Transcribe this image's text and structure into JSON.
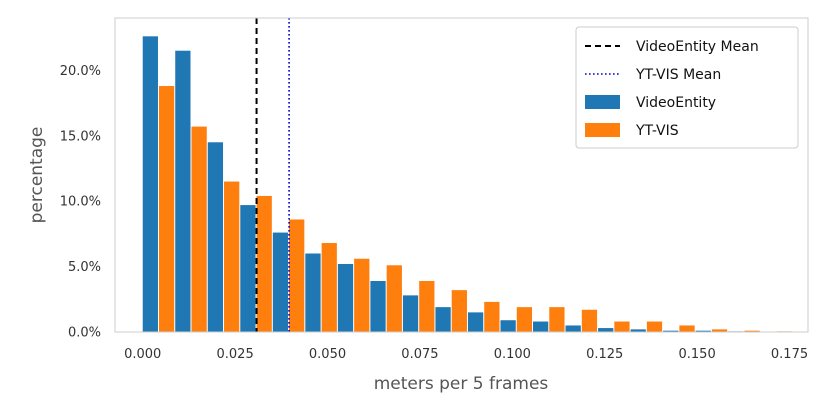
{
  "chart_data": {
    "type": "bar",
    "xlabel": "meters per 5 frames",
    "ylabel": "percentage",
    "xlim": [
      -0.0075,
      0.18
    ],
    "ylim": [
      0,
      24
    ],
    "x_ticks": [
      0.0,
      0.025,
      0.05,
      0.075,
      0.1,
      0.125,
      0.15,
      0.175
    ],
    "x_tick_labels": [
      "0.000",
      "0.025",
      "0.050",
      "0.075",
      "0.100",
      "0.125",
      "0.150",
      "0.175"
    ],
    "y_ticks": [
      0,
      5,
      10,
      15,
      20
    ],
    "y_tick_labels": [
      "0.0%",
      "5.0%",
      "10.0%",
      "15.0%",
      "20.0%"
    ],
    "grid": false,
    "legend_placement": "top-right",
    "bin_width": 0.0088,
    "x": [
      0.0044,
      0.0132,
      0.022,
      0.0308,
      0.0396,
      0.0484,
      0.0572,
      0.066,
      0.0748,
      0.0836,
      0.0924,
      0.1012,
      0.11,
      0.1188,
      0.1276,
      0.1364,
      0.1452,
      0.154,
      0.1628,
      0.1716
    ],
    "series": [
      {
        "name": "VideoEntity",
        "color": "#1f77b4",
        "values": [
          22.6,
          21.5,
          14.5,
          9.7,
          7.6,
          6.0,
          5.2,
          3.9,
          2.8,
          1.9,
          1.5,
          0.9,
          0.8,
          0.5,
          0.3,
          0.2,
          0.1,
          0.1,
          0.05,
          0.03
        ]
      },
      {
        "name": "YT-VIS",
        "color": "#ff7f0e",
        "values": [
          18.8,
          15.7,
          11.5,
          10.4,
          8.6,
          6.8,
          5.6,
          5.1,
          3.9,
          3.2,
          2.3,
          1.9,
          1.9,
          1.7,
          0.8,
          0.8,
          0.5,
          0.2,
          0.1,
          0.05
        ]
      }
    ],
    "reference_lines": [
      {
        "name": "VideoEntity Mean",
        "x": 0.0308,
        "color": "#000000",
        "style": "dashed"
      },
      {
        "name": "YT-VIS Mean",
        "x": 0.0396,
        "color": "#0000cc",
        "style": "dotted"
      }
    ]
  }
}
